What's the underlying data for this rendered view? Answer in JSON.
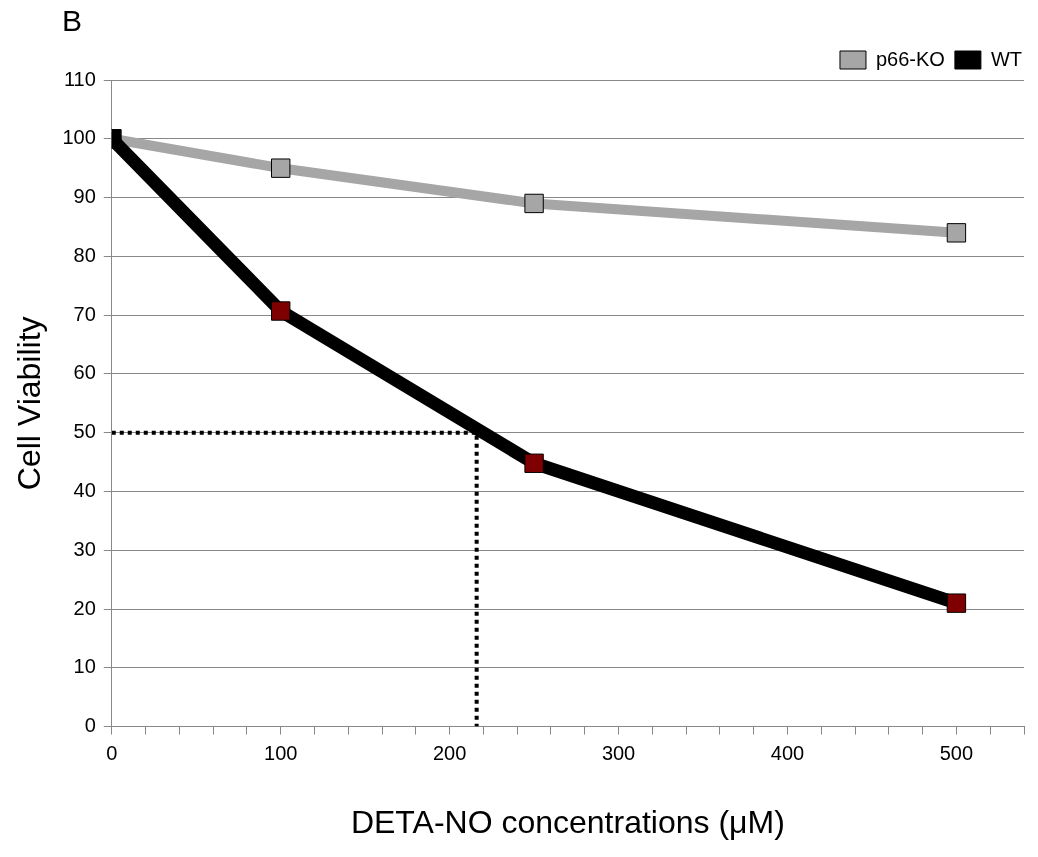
{
  "chart_data": {
    "type": "line",
    "title": "B",
    "xlabel": "DETA-NO concentrations (μM)",
    "ylabel": "Cell Viability",
    "xlim": [
      0,
      540
    ],
    "xticks": [
      0,
      {
        "value": 20,
        "label": null
      },
      {
        "value": 40,
        "label": null
      },
      {
        "value": 60,
        "label": null
      },
      {
        "value": 80,
        "label": null
      },
      100,
      {
        "value": 120,
        "label": null
      },
      {
        "value": 140,
        "label": null
      },
      {
        "value": 160,
        "label": null
      },
      {
        "value": 180,
        "label": null
      },
      200,
      {
        "value": 220,
        "label": null
      },
      {
        "value": 240,
        "label": null
      },
      {
        "value": 260,
        "label": null
      },
      {
        "value": 280,
        "label": null
      },
      300,
      {
        "value": 320,
        "label": null
      },
      {
        "value": 340,
        "label": null
      },
      {
        "value": 360,
        "label": null
      },
      {
        "value": 380,
        "label": null
      },
      400,
      {
        "value": 420,
        "label": null
      },
      {
        "value": 440,
        "label": null
      },
      {
        "value": 460,
        "label": null
      },
      {
        "value": 480,
        "label": null
      },
      500,
      {
        "value": 520,
        "label": null
      },
      {
        "value": 540,
        "label": null
      }
    ],
    "ylim": [
      0,
      110
    ],
    "yticks": [
      0,
      10,
      20,
      30,
      40,
      50,
      60,
      70,
      80,
      90,
      100,
      110
    ],
    "grid": "y",
    "legend": "top right",
    "marker": "square",
    "series": [
      {
        "name": "p66-KO",
        "color": "#a6a6a6",
        "x": [
          0,
          100,
          250,
          500
        ],
        "values": [
          100,
          95,
          89,
          84
        ]
      },
      {
        "name": "WT",
        "color": "#000000",
        "colors": [
          "#000000",
          "#7f0000",
          "#7f0000",
          "#7f0000"
        ],
        "x": [
          0,
          100,
          250,
          500
        ],
        "values": [
          100,
          70.7,
          44.8,
          21
        ]
      },
      {
        "type": "line",
        "color": "#000000",
        "line_style": "dotted",
        "marker": "none",
        "x": [
          0,
          216,
          216
        ],
        "values": [
          50,
          50,
          0
        ]
      }
    ]
  }
}
